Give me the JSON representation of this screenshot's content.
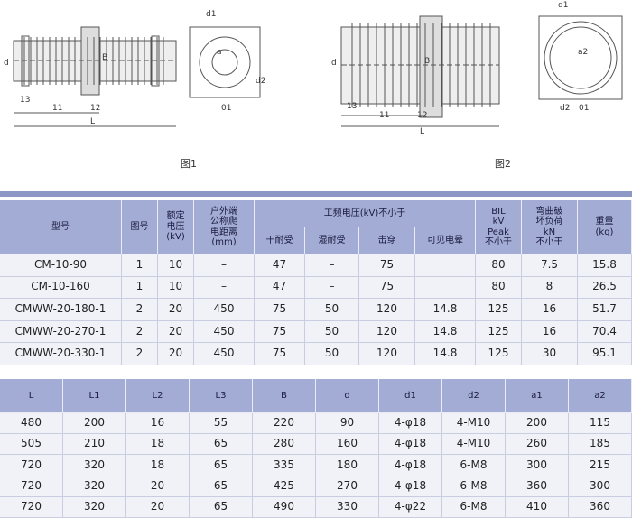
{
  "figures": [
    {
      "caption": "图1",
      "labels": [
        "d",
        "B",
        "13",
        "11",
        "12",
        "L",
        "d1",
        "a",
        "d2",
        "01"
      ]
    },
    {
      "caption": "图2",
      "labels": [
        "d",
        "B",
        "13",
        "11",
        "12",
        "L",
        "d1",
        "a2",
        "d2",
        "01"
      ]
    }
  ],
  "table1": {
    "columns": [
      "型号",
      "图号",
      "额定\n电压\n(kV)",
      "户外端\n公称爬\n电距离\n(mm)"
    ],
    "group": "工频电压(kV)不小于",
    "subcolumns": [
      "干耐受",
      "湿耐受",
      "击穿",
      "可见电晕"
    ],
    "tail": [
      "BIL\nkV\nPeak\n不小于",
      "弯曲破\n坏负荷\nkN\n不小于",
      "重量\n(kg)"
    ],
    "rows": [
      [
        "CM-10-90",
        "1",
        "10",
        "–",
        "47",
        "–",
        "75",
        null,
        "80",
        "7.5",
        "15.8"
      ],
      [
        "CM-10-160",
        "1",
        "10",
        "–",
        "47",
        "–",
        "75",
        null,
        "80",
        "8",
        "26.5"
      ],
      [
        "CMWW-20-180-1",
        "2",
        "20",
        "450",
        "75",
        "50",
        "120",
        "14.8",
        "125",
        "16",
        "51.7"
      ],
      [
        "CMWW-20-270-1",
        "2",
        "20",
        "450",
        "75",
        "50",
        "120",
        "14.8",
        "125",
        "16",
        "70.4"
      ],
      [
        "CMWW-20-330-1",
        "2",
        "20",
        "450",
        "75",
        "50",
        "120",
        "14.8",
        "125",
        "30",
        "95.1"
      ]
    ]
  },
  "table2": {
    "columns": [
      "L",
      "L1",
      "L2",
      "L3",
      "B",
      "d",
      "d1",
      "d2",
      "a1",
      "a2"
    ],
    "rows": [
      [
        "480",
        "200",
        "16",
        "55",
        "220",
        "90",
        "4-φ18",
        "4-M10",
        "200",
        "115"
      ],
      [
        "505",
        "210",
        "18",
        "65",
        "280",
        "160",
        "4-φ18",
        "4-M10",
        "260",
        "185"
      ],
      [
        "720",
        "320",
        "18",
        "65",
        "335",
        "180",
        "4-φ18",
        "6-M8",
        "300",
        "215"
      ],
      [
        "720",
        "320",
        "20",
        "65",
        "425",
        "270",
        "4-φ18",
        "6-M8",
        "360",
        "300"
      ],
      [
        "720",
        "320",
        "20",
        "65",
        "490",
        "330",
        "4-φ22",
        "6-M8",
        "410",
        "360"
      ]
    ]
  }
}
